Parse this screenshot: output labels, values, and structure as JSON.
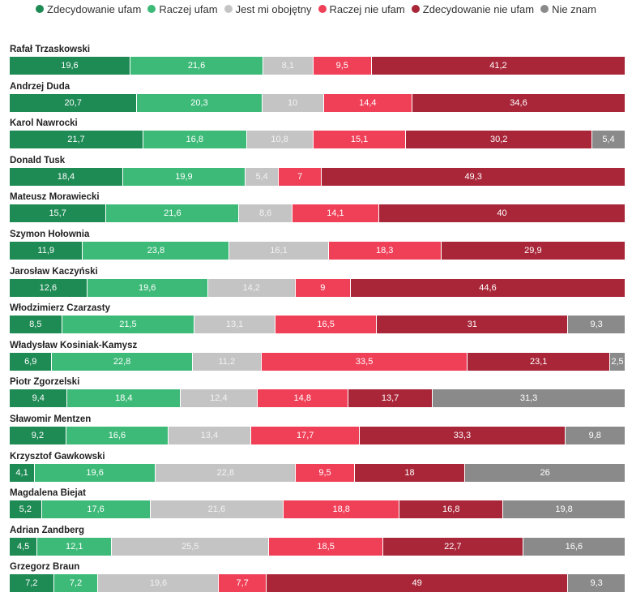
{
  "chart_data": {
    "type": "bar",
    "orientation": "horizontal",
    "stacked": true,
    "legend_position": "top",
    "series": [
      {
        "name": "Zdecydowanie ufam",
        "color": "#1e8a54",
        "text_color": "#ffffff"
      },
      {
        "name": "Raczej ufam",
        "color": "#3dba78",
        "text_color": "#ffffff"
      },
      {
        "name": "Jest mi obojętny",
        "color": "#c4c4c4",
        "text_color": "#f2f2f2"
      },
      {
        "name": "Raczej nie ufam",
        "color": "#f04058",
        "text_color": "#ffffff"
      },
      {
        "name": "Zdecydowanie nie ufam",
        "color": "#a82638",
        "text_color": "#ffffff"
      },
      {
        "name": "Nie znam",
        "color": "#8a8a8a",
        "text_color": "#ffffff"
      }
    ],
    "rows": [
      {
        "name": "Rafał Trzaskowski",
        "values": [
          19.6,
          21.6,
          8.1,
          9.5,
          41.2,
          null
        ],
        "labels": [
          "19,6",
          "21,6",
          "8,1",
          "9,5",
          "41,2",
          ""
        ]
      },
      {
        "name": "Andrzej Duda",
        "values": [
          20.7,
          20.3,
          10.0,
          14.4,
          34.6,
          null
        ],
        "labels": [
          "20,7",
          "20,3",
          "10",
          "14,4",
          "34,6",
          ""
        ]
      },
      {
        "name": "Karol Nawrocki",
        "values": [
          21.7,
          16.8,
          10.8,
          15.1,
          30.2,
          5.4
        ],
        "labels": [
          "21,7",
          "16,8",
          "10,8",
          "15,1",
          "30,2",
          "5,4"
        ]
      },
      {
        "name": "Donald Tusk",
        "values": [
          18.4,
          19.9,
          5.4,
          7.0,
          49.3,
          null
        ],
        "labels": [
          "18,4",
          "19,9",
          "5,4",
          "7",
          "49,3",
          ""
        ]
      },
      {
        "name": "Mateusz Morawiecki",
        "values": [
          15.7,
          21.6,
          8.6,
          14.1,
          40.0,
          null
        ],
        "labels": [
          "15,7",
          "21,6",
          "8,6",
          "14,1",
          "40",
          ""
        ]
      },
      {
        "name": "Szymon Hołownia",
        "values": [
          11.9,
          23.8,
          16.1,
          18.3,
          29.9,
          null
        ],
        "labels": [
          "11,9",
          "23,8",
          "16,1",
          "18,3",
          "29,9",
          ""
        ]
      },
      {
        "name": "Jarosław Kaczyński",
        "values": [
          12.6,
          19.6,
          14.2,
          9.0,
          44.6,
          null
        ],
        "labels": [
          "12,6",
          "19,6",
          "14,2",
          "9",
          "44,6",
          ""
        ]
      },
      {
        "name": "Włodzimierz Czarzasty",
        "values": [
          8.5,
          21.5,
          13.1,
          16.5,
          31.0,
          9.3
        ],
        "labels": [
          "8,5",
          "21,5",
          "13,1",
          "16,5",
          "31",
          "9,3"
        ]
      },
      {
        "name": "Władysław Kosiniak-Kamysz",
        "values": [
          6.9,
          22.8,
          11.2,
          33.5,
          23.1,
          2.5
        ],
        "labels": [
          "6,9",
          "22,8",
          "11,2",
          "33,5",
          "23,1",
          "2,5"
        ]
      },
      {
        "name": "Piotr Zgorzelski",
        "values": [
          9.4,
          18.4,
          12.4,
          14.8,
          13.7,
          31.3
        ],
        "labels": [
          "9,4",
          "18,4",
          "12,4",
          "14,8",
          "13,7",
          "31,3"
        ]
      },
      {
        "name": "Sławomir Mentzen",
        "values": [
          9.2,
          16.6,
          13.4,
          17.7,
          33.3,
          9.8
        ],
        "labels": [
          "9,2",
          "16,6",
          "13,4",
          "17,7",
          "33,3",
          "9,8"
        ]
      },
      {
        "name": "Krzysztof Gawkowski",
        "values": [
          4.1,
          19.6,
          22.8,
          9.5,
          18.0,
          26.0
        ],
        "labels": [
          "4,1",
          "19,6",
          "22,8",
          "9,5",
          "18",
          "26"
        ]
      },
      {
        "name": "Magdalena Biejat",
        "values": [
          5.2,
          17.6,
          21.6,
          18.8,
          16.8,
          19.8
        ],
        "labels": [
          "5,2",
          "17,6",
          "21,6",
          "18,8",
          "16,8",
          "19,8"
        ]
      },
      {
        "name": "Adrian Zandberg",
        "values": [
          4.5,
          12.1,
          25.5,
          18.5,
          22.7,
          16.6
        ],
        "labels": [
          "4,5",
          "12,1",
          "25,5",
          "18,5",
          "22,7",
          "16,6"
        ]
      },
      {
        "name": "Grzegorz Braun",
        "values": [
          7.2,
          7.2,
          19.6,
          7.7,
          49.0,
          9.3
        ],
        "labels": [
          "7,2",
          "7,2",
          "19,6",
          "7,7",
          "49",
          "9,3"
        ]
      }
    ]
  }
}
